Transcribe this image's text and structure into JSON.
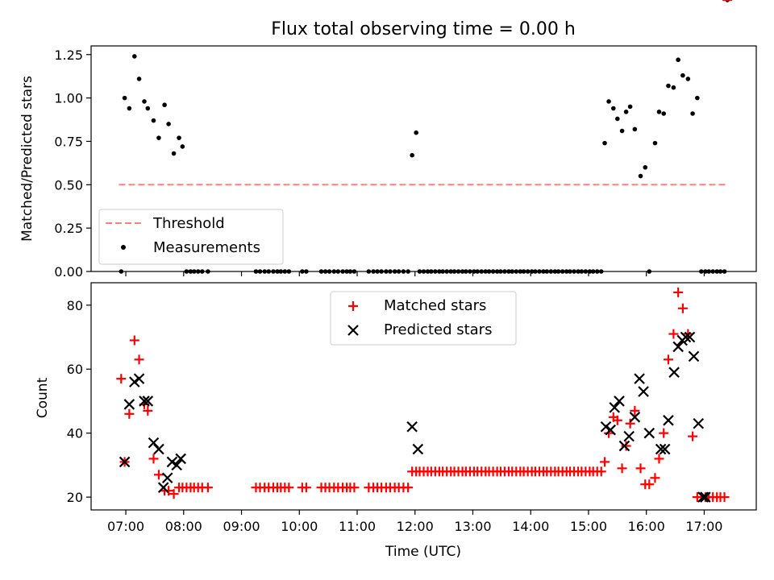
{
  "figure_title": "Flux total observing time = 0.00 h",
  "colors": {
    "threshold": "#ff7f7f",
    "measurements": "#000000",
    "matched": "#ff0000",
    "predicted": "#000000"
  },
  "chart_data": [
    {
      "type": "scatter",
      "panel": "top",
      "title": "Flux total observing time = 0.00 h",
      "xlabel": "",
      "ylabel": "Matched/Predicted stars",
      "xlim": [
        6.4,
        17.9
      ],
      "ylim": [
        0,
        1.3
      ],
      "yticks": [
        0.0,
        0.25,
        0.5,
        0.75,
        1.0,
        1.25
      ],
      "ytick_labels": [
        "0.00",
        "0.25",
        "0.50",
        "0.75",
        "1.00",
        "1.25"
      ],
      "legend": {
        "position": "lower-left",
        "threshold_label": "Threshold",
        "measurements_label": "Measurements"
      },
      "threshold": {
        "y": 0.5,
        "x_start": 6.88,
        "x_end": 17.4
      },
      "measurements_x": [
        6.92,
        6.98,
        7.06,
        7.15,
        7.23,
        7.32,
        7.38,
        7.48,
        7.57,
        7.67,
        7.74,
        7.83,
        7.92,
        7.98,
        8.05,
        8.12,
        8.18,
        8.25,
        8.32,
        8.42,
        9.25,
        9.32,
        9.4,
        9.47,
        9.55,
        9.62,
        9.68,
        9.75,
        9.82,
        10.05,
        10.12,
        10.38,
        10.45,
        10.52,
        10.6,
        10.67,
        10.75,
        10.82,
        10.88,
        10.95,
        11.2,
        11.28,
        11.35,
        11.42,
        11.5,
        11.57,
        11.65,
        11.72,
        11.8,
        11.88,
        11.95,
        12.02,
        12.08,
        12.15,
        12.22,
        12.28,
        12.35,
        12.42,
        12.48,
        12.55,
        12.62,
        12.68,
        12.75,
        12.82,
        12.88,
        12.95,
        13.02,
        13.08,
        13.15,
        13.22,
        13.28,
        13.35,
        13.42,
        13.48,
        13.55,
        13.62,
        13.68,
        13.75,
        13.82,
        13.88,
        13.95,
        14.02,
        14.08,
        14.15,
        14.22,
        14.28,
        14.35,
        14.42,
        14.48,
        14.55,
        14.62,
        14.68,
        14.75,
        14.82,
        14.88,
        14.95,
        15.02,
        15.08,
        15.15,
        15.22,
        15.28,
        15.35,
        15.43,
        15.5,
        15.58,
        15.65,
        15.72,
        15.8,
        15.9,
        15.98,
        16.05,
        16.15,
        16.22,
        16.3,
        16.38,
        16.47,
        16.55,
        16.63,
        16.72,
        16.8,
        16.88,
        16.95,
        17.02,
        17.08,
        17.15,
        17.22,
        17.28,
        17.35,
        17.4
      ],
      "measurements_y": [
        0.0,
        1.0,
        0.94,
        1.24,
        1.11,
        0.98,
        0.94,
        0.87,
        0.77,
        0.96,
        0.85,
        0.68,
        0.77,
        0.72,
        0.0,
        0.0,
        0.0,
        0.0,
        0.0,
        0.0,
        0.0,
        0.0,
        0.0,
        0.0,
        0.0,
        0.0,
        0.0,
        0.0,
        0.0,
        0.0,
        0.0,
        0.0,
        0.0,
        0.0,
        0.0,
        0.0,
        0.0,
        0.0,
        0.0,
        0.0,
        0.0,
        0.0,
        0.0,
        0.0,
        0.0,
        0.0,
        0.0,
        0.0,
        0.0,
        0.0,
        0.67,
        0.8,
        0.0,
        0.0,
        0.0,
        0.0,
        0.0,
        0.0,
        0.0,
        0.0,
        0.0,
        0.0,
        0.0,
        0.0,
        0.0,
        0.0,
        0.0,
        0.0,
        0.0,
        0.0,
        0.0,
        0.0,
        0.0,
        0.0,
        0.0,
        0.0,
        0.0,
        0.0,
        0.0,
        0.0,
        0.0,
        0.0,
        0.0,
        0.0,
        0.0,
        0.0,
        0.0,
        0.0,
        0.0,
        0.0,
        0.0,
        0.0,
        0.0,
        0.0,
        0.0,
        0.0,
        0.0,
        0.0,
        0.0,
        0.0,
        0.74,
        0.98,
        0.94,
        0.88,
        0.81,
        0.92,
        0.95,
        0.82,
        0.55,
        0.6,
        0.0,
        0.74,
        0.92,
        0.91,
        1.07,
        1.06,
        1.22,
        1.13,
        1.11,
        0.91,
        1.0,
        0.0,
        0.0,
        0.0,
        0.0,
        0.0,
        0.0,
        0.0
      ]
    },
    {
      "type": "scatter",
      "panel": "bottom",
      "title": "",
      "xlabel": "Time (UTC)",
      "ylabel": "Count",
      "xlim": [
        6.4,
        17.9
      ],
      "ylim": [
        16,
        87
      ],
      "yticks": [
        20,
        40,
        60,
        80
      ],
      "ytick_labels": [
        "20",
        "40",
        "60",
        "80"
      ],
      "xticks": [
        7,
        8,
        9,
        10,
        11,
        12,
        13,
        14,
        15,
        16,
        17
      ],
      "xtick_labels": [
        "07:00",
        "08:00",
        "09:00",
        "10:00",
        "11:00",
        "12:00",
        "13:00",
        "14:00",
        "15:00",
        "16:00",
        "17:00"
      ],
      "legend": {
        "position": "upper-center",
        "matched_label": "Matched stars",
        "predicted_label": "Predicted stars"
      },
      "matched_x": [
        6.92,
        6.98,
        7.06,
        7.15,
        7.23,
        7.32,
        7.38,
        7.48,
        7.57,
        7.67,
        7.74,
        7.83,
        7.92,
        7.98,
        8.05,
        8.12,
        8.18,
        8.25,
        8.32,
        8.42,
        9.25,
        9.32,
        9.4,
        9.47,
        9.55,
        9.62,
        9.68,
        9.75,
        9.82,
        10.05,
        10.12,
        10.38,
        10.45,
        10.52,
        10.6,
        10.67,
        10.75,
        10.82,
        10.88,
        10.95,
        11.2,
        11.28,
        11.35,
        11.42,
        11.5,
        11.57,
        11.65,
        11.72,
        11.8,
        11.88,
        11.95,
        12.02,
        12.08,
        12.15,
        12.22,
        12.28,
        12.35,
        12.42,
        12.48,
        12.55,
        12.62,
        12.68,
        12.75,
        12.82,
        12.88,
        12.95,
        13.02,
        13.08,
        13.15,
        13.22,
        13.28,
        13.35,
        13.42,
        13.48,
        13.55,
        13.62,
        13.68,
        13.75,
        13.82,
        13.88,
        13.95,
        14.02,
        14.08,
        14.15,
        14.22,
        14.28,
        14.35,
        14.42,
        14.48,
        14.55,
        14.62,
        14.68,
        14.75,
        14.82,
        14.88,
        14.95,
        15.02,
        15.08,
        15.15,
        15.22,
        15.28,
        15.35,
        15.43,
        15.5,
        15.58,
        15.65,
        15.72,
        15.8,
        15.9,
        15.98,
        16.05,
        16.15,
        16.22,
        16.3,
        16.38,
        16.47,
        16.55,
        16.63,
        16.72,
        16.8,
        16.88,
        16.95,
        17.02,
        17.08,
        17.15,
        17.22,
        17.28,
        17.35,
        17.4
      ],
      "matched_y": [
        57,
        31,
        46,
        69,
        63,
        49,
        47,
        32,
        27,
        22,
        22,
        21,
        23,
        23,
        23,
        23,
        23,
        23,
        23,
        23,
        23,
        23,
        23,
        23,
        23,
        23,
        23,
        23,
        23,
        23,
        23,
        23,
        23,
        23,
        23,
        23,
        23,
        23,
        23,
        23,
        23,
        23,
        23,
        23,
        23,
        23,
        23,
        23,
        23,
        23,
        28,
        28,
        28,
        28,
        28,
        28,
        28,
        28,
        28,
        28,
        28,
        28,
        28,
        28,
        28,
        28,
        28,
        28,
        28,
        28,
        28,
        28,
        28,
        28,
        28,
        28,
        28,
        28,
        28,
        28,
        28,
        28,
        28,
        28,
        28,
        28,
        28,
        28,
        28,
        28,
        28,
        28,
        28,
        28,
        28,
        28,
        28,
        28,
        28,
        28,
        31,
        40,
        45,
        44,
        29,
        36,
        43,
        47,
        29,
        24,
        24,
        26,
        32,
        40,
        63,
        71,
        84,
        79,
        71,
        39,
        20,
        20,
        20,
        20,
        20,
        20,
        20,
        20
      ],
      "predicted_x": [
        6.98,
        7.06,
        7.15,
        7.23,
        7.32,
        7.38,
        7.48,
        7.57,
        7.65,
        7.72,
        7.8,
        7.88,
        7.95,
        11.95,
        12.05,
        15.3,
        15.38,
        15.45,
        15.53,
        15.62,
        15.7,
        15.8,
        15.88,
        15.95,
        16.05,
        16.25,
        16.32,
        16.38,
        16.48,
        16.55,
        16.62,
        16.68,
        16.75,
        16.82,
        16.9,
        16.98,
        17.02
      ],
      "predicted_y": [
        31,
        49,
        56,
        57,
        50,
        50,
        37,
        35,
        23,
        26,
        31,
        30,
        32,
        42,
        35,
        42,
        41,
        48,
        50,
        36,
        39,
        45,
        57,
        53,
        40,
        35,
        35,
        44,
        59,
        67,
        69,
        70,
        70,
        64,
        43,
        20,
        20
      ]
    }
  ]
}
